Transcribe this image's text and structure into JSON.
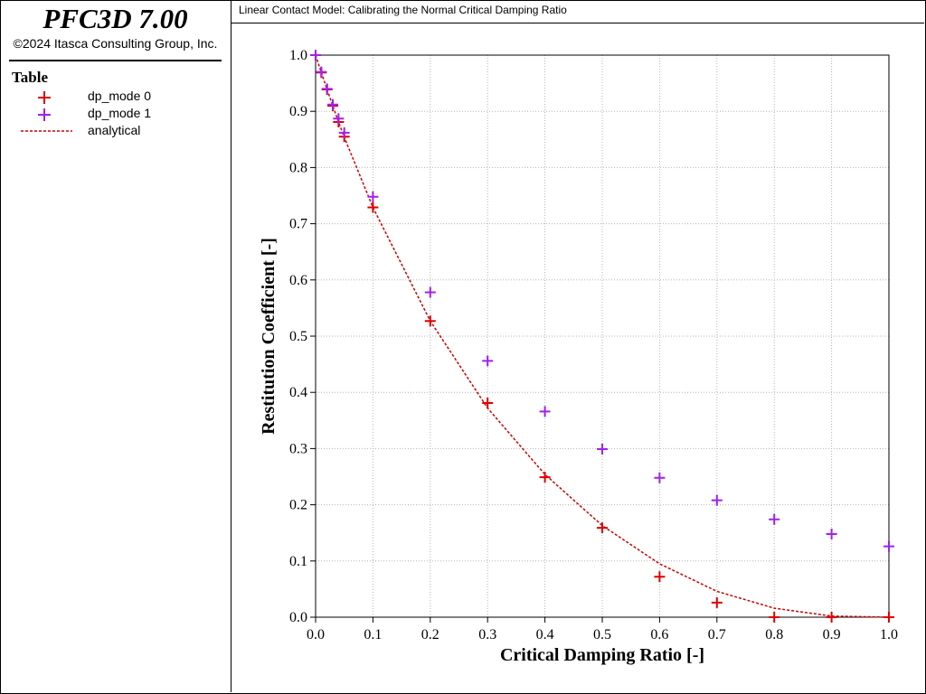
{
  "app": {
    "title": "PFC3D 7.00",
    "copyright": "©2024 Itasca Consulting Group, Inc."
  },
  "legend": {
    "title": "Table",
    "items": [
      {
        "label": "dp_mode 0",
        "color": "#e00000",
        "symbol": "plus"
      },
      {
        "label": "dp_mode 1",
        "color": "#a020f0",
        "symbol": "plus"
      },
      {
        "label": "analytical",
        "color": "#cc0000",
        "symbol": "dashed-line"
      }
    ]
  },
  "chart_data": {
    "type": "scatter",
    "title": "Linear Contact Model: Calibrating the Normal Critical Damping Ratio",
    "xlabel": "Critical Damping Ratio [-]",
    "ylabel": "Restitution Coefficient [-]",
    "xlim": [
      0,
      1
    ],
    "ylim": [
      0,
      1
    ],
    "xticks": [
      "0.0",
      "0.1",
      "0.2",
      "0.3",
      "0.4",
      "0.5",
      "0.6",
      "0.7",
      "0.8",
      "0.9",
      "1.0"
    ],
    "yticks": [
      "0.0",
      "0.1",
      "0.2",
      "0.3",
      "0.4",
      "0.5",
      "0.6",
      "0.7",
      "0.8",
      "0.9",
      "1.0"
    ],
    "grid": true,
    "series": [
      {
        "name": "dp_mode 0",
        "color": "#e00000",
        "marker": "plus",
        "x": [
          0.0,
          0.01,
          0.02,
          0.03,
          0.04,
          0.05,
          0.1,
          0.2,
          0.3,
          0.4,
          0.5,
          0.6,
          0.7,
          0.8,
          0.9,
          1.0
        ],
        "y": [
          1.0,
          0.969,
          0.939,
          0.91,
          0.881,
          0.855,
          0.729,
          0.527,
          0.381,
          0.249,
          0.159,
          0.072,
          0.026,
          0.0,
          0.0,
          0.0
        ]
      },
      {
        "name": "dp_mode 1",
        "color": "#a020f0",
        "marker": "plus",
        "x": [
          0.0,
          0.01,
          0.02,
          0.03,
          0.04,
          0.05,
          0.1,
          0.2,
          0.3,
          0.4,
          0.5,
          0.6,
          0.7,
          0.8,
          0.9,
          1.0
        ],
        "y": [
          1.0,
          0.97,
          0.94,
          0.912,
          0.887,
          0.862,
          0.748,
          0.578,
          0.456,
          0.366,
          0.299,
          0.248,
          0.208,
          0.174,
          0.148,
          0.126
        ]
      },
      {
        "name": "analytical",
        "color": "#cc0000",
        "marker": "dashed-line",
        "x": [
          0.0,
          0.01,
          0.02,
          0.03,
          0.04,
          0.05,
          0.1,
          0.2,
          0.3,
          0.4,
          0.5,
          0.6,
          0.7,
          0.8,
          0.9,
          1.0
        ],
        "y": [
          1.0,
          0.969,
          0.939,
          0.91,
          0.881,
          0.854,
          0.729,
          0.527,
          0.372,
          0.254,
          0.163,
          0.095,
          0.046,
          0.016,
          0.002,
          0.0
        ]
      }
    ]
  }
}
